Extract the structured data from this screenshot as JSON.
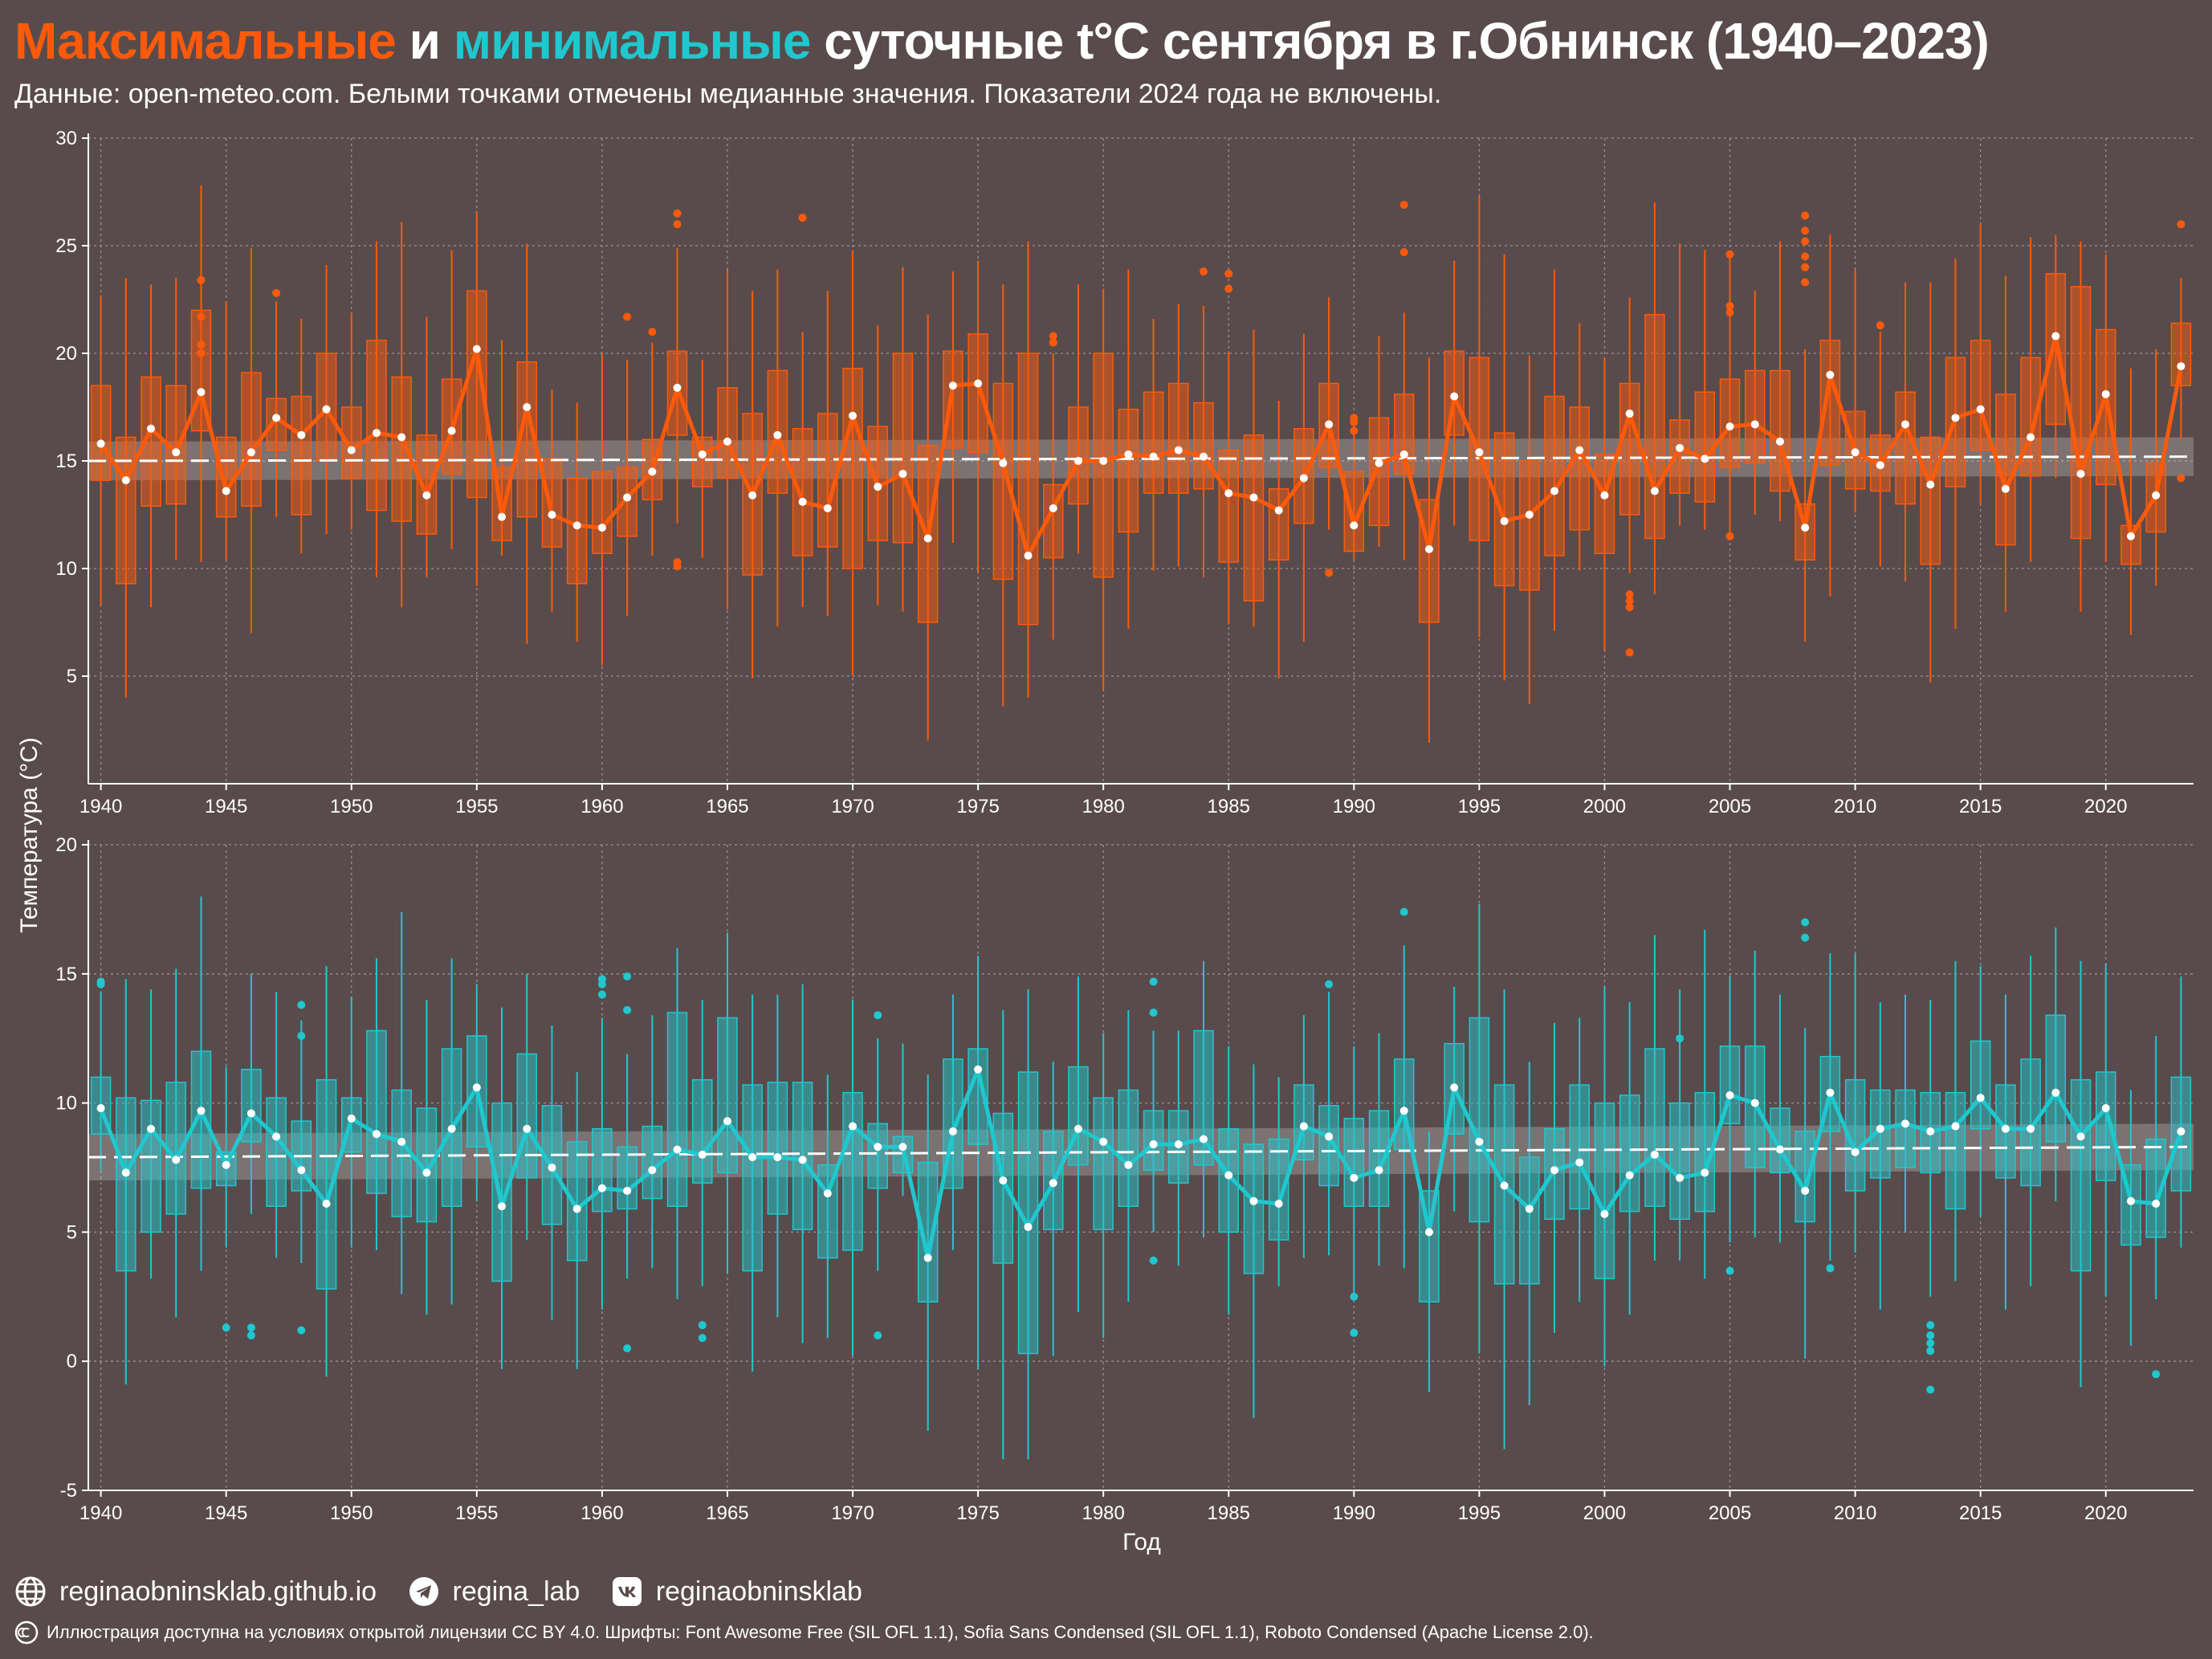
{
  "header": {
    "title_max": "Максимальные",
    "title_and": " и ",
    "title_min": "минимальные",
    "title_rest": " суточные t°C сентября в г.Обнинск (1940–2023)",
    "subtitle": "Данные: open-meteo.com. Белыми точками отмечены медианные значения. Показатели 2024 года не включены."
  },
  "colors": {
    "max": "#fc5a0b",
    "min": "#1fc8ce",
    "background": "#594b4b",
    "median_point": "#ffffff",
    "trend": "#ffffff"
  },
  "footer": {
    "links": [
      {
        "icon": "globe-icon",
        "text": "reginaobninsklab.github.io"
      },
      {
        "icon": "telegram-icon",
        "text": "regina_lab"
      },
      {
        "icon": "vk-icon",
        "text": "reginaobninsklab"
      }
    ],
    "license_icon": "cc-icon",
    "license": "Иллюстрация доступна на условиях открытой лицензии CC BY 4.0.  Шрифты: Font Awesome Free (SIL OFL 1.1), Sofia Sans Condensed (SIL OFL 1.1), Roboto Condensed (Apache License 2.0)."
  },
  "chart_data": [
    {
      "type": "box",
      "name": "Максимальные",
      "xlabel": "Год",
      "ylabel": "Температура (°C)",
      "xlim": [
        1939.5,
        2023.5
      ],
      "ylim": [
        0,
        30
      ],
      "xticks": [
        1940,
        1945,
        1950,
        1955,
        1960,
        1965,
        1970,
        1975,
        1980,
        1985,
        1990,
        1995,
        2000,
        2005,
        2010,
        2015,
        2020
      ],
      "yticks": [
        5,
        10,
        15,
        20,
        25,
        30
      ],
      "grid": true,
      "trend": [
        15.0,
        15.2
      ],
      "start_year": 1940,
      "medians": [
        15.8,
        14.1,
        16.5,
        15.4,
        18.2,
        13.6,
        15.4,
        17.0,
        16.2,
        17.4,
        15.5,
        16.3,
        16.1,
        13.4,
        16.4,
        20.2,
        12.4,
        17.5,
        12.5,
        12.0,
        11.9,
        13.3,
        14.5,
        18.4,
        15.3,
        15.9,
        13.4,
        16.2,
        13.1,
        12.8,
        17.1,
        13.8,
        14.4,
        11.4,
        18.5,
        18.6,
        14.9,
        10.6,
        12.8,
        15.0,
        15.0,
        15.3,
        15.2,
        15.5,
        15.2,
        13.5,
        13.3,
        12.7,
        14.2,
        16.7,
        12.0,
        14.9,
        15.3,
        10.9,
        18.0,
        15.4,
        12.2,
        12.5,
        13.6,
        15.5,
        13.4,
        17.2,
        13.6,
        15.6,
        15.1,
        16.6,
        16.7,
        15.9,
        11.9,
        19.0,
        15.4,
        14.8,
        16.7,
        13.9,
        17.0,
        17.4,
        13.7,
        16.1,
        20.8,
        14.4,
        18.1,
        11.5,
        13.4,
        19.4
      ],
      "q1": [
        14.1,
        9.3,
        12.9,
        13.0,
        16.4,
        12.4,
        12.9,
        15.5,
        12.5,
        15.0,
        14.2,
        12.7,
        12.2,
        11.6,
        14.4,
        13.3,
        11.3,
        12.4,
        11.0,
        9.3,
        10.7,
        11.5,
        13.2,
        16.2,
        13.8,
        14.2,
        9.7,
        13.5,
        10.6,
        11.0,
        10.0,
        11.3,
        11.2,
        7.5,
        15.6,
        15.4,
        9.5,
        7.4,
        10.5,
        13.0,
        9.6,
        11.7,
        13.5,
        13.5,
        13.7,
        10.3,
        8.5,
        10.4,
        12.1,
        14.7,
        10.8,
        12.0,
        14.4,
        7.5,
        16.2,
        11.3,
        9.2,
        9.0,
        10.6,
        11.8,
        10.7,
        12.5,
        11.4,
        13.5,
        13.1,
        14.7,
        14.9,
        13.6,
        10.4,
        14.8,
        13.7,
        13.6,
        13.0,
        10.2,
        13.8,
        15.5,
        11.1,
        14.3,
        16.7,
        11.4,
        13.9,
        10.2,
        11.7,
        18.5
      ],
      "q3": [
        18.5,
        16.1,
        18.9,
        18.5,
        22.0,
        16.1,
        19.1,
        17.9,
        18.0,
        20.0,
        17.5,
        20.6,
        18.9,
        16.2,
        18.8,
        22.9,
        14.7,
        19.6,
        15.1,
        14.2,
        14.5,
        14.7,
        16.0,
        20.1,
        16.1,
        18.4,
        17.2,
        19.2,
        16.5,
        17.2,
        19.3,
        16.6,
        20.0,
        15.7,
        20.1,
        20.9,
        18.6,
        20.0,
        13.9,
        17.5,
        20.0,
        17.4,
        18.2,
        18.6,
        17.7,
        15.5,
        16.2,
        13.7,
        16.5,
        18.6,
        14.5,
        17.0,
        18.1,
        13.2,
        20.1,
        19.8,
        16.3,
        15.0,
        18.0,
        17.5,
        15.3,
        18.6,
        21.8,
        16.9,
        18.2,
        18.8,
        19.2,
        19.2,
        13.0,
        20.6,
        17.3,
        16.2,
        18.2,
        16.1,
        19.8,
        20.6,
        18.1,
        19.8,
        23.7,
        23.1,
        21.1,
        12.0,
        14.9,
        21.4
      ],
      "whisker_low": [
        8.3,
        4.0,
        8.2,
        10.4,
        10.3,
        10.4,
        7.0,
        12.4,
        10.7,
        11.6,
        11.8,
        9.6,
        8.2,
        9.6,
        10.9,
        9.2,
        10.6,
        6.5,
        8.0,
        6.6,
        5.5,
        7.8,
        10.6,
        12.1,
        10.5,
        8.1,
        4.9,
        7.3,
        8.2,
        7.8,
        5.0,
        8.3,
        8.0,
        2.0,
        11.2,
        9.8,
        3.6,
        4.0,
        6.7,
        10.7,
        4.3,
        7.2,
        9.9,
        10.1,
        9.6,
        7.4,
        7.3,
        4.9,
        6.6,
        11.8,
        10.4,
        11.0,
        10.4,
        1.9,
        12.0,
        6.8,
        4.8,
        3.7,
        7.1,
        9.9,
        6.2,
        9.8,
        8.8,
        12.0,
        11.8,
        11.7,
        12.5,
        12.2,
        6.6,
        8.7,
        12.6,
        10.1,
        9.4,
        4.7,
        7.2,
        13.0,
        8.0,
        10.3,
        14.2,
        8.0,
        10.3,
        6.9,
        9.2,
        16.0
      ],
      "whisker_high": [
        22.7,
        23.5,
        23.2,
        23.5,
        27.8,
        22.4,
        24.9,
        22.4,
        21.6,
        24.1,
        21.9,
        25.2,
        26.1,
        21.7,
        24.8,
        26.6,
        20.6,
        25.1,
        18.3,
        17.7,
        20.0,
        19.7,
        20.5,
        24.9,
        19.7,
        23.9,
        22.9,
        23.9,
        21.0,
        22.9,
        24.8,
        21.3,
        24.0,
        21.8,
        23.8,
        24.3,
        23.2,
        25.2,
        20.0,
        23.2,
        23.0,
        23.9,
        21.6,
        22.3,
        22.2,
        20.1,
        21.1,
        17.8,
        20.9,
        22.6,
        16.3,
        20.8,
        21.9,
        19.8,
        24.3,
        27.3,
        24.6,
        19.9,
        23.9,
        21.4,
        19.8,
        22.6,
        27.0,
        25.1,
        24.8,
        24.6,
        22.9,
        25.2,
        20.2,
        25.5,
        23.9,
        21.0,
        23.3,
        23.3,
        24.4,
        26.0,
        23.6,
        25.4,
        25.5,
        25.2,
        24.6,
        19.3,
        20.2,
        23.5
      ],
      "outliers": [
        [
          1944,
          23.4
        ],
        [
          1944,
          21.7
        ],
        [
          1944,
          20.4
        ],
        [
          1944,
          20.0
        ],
        [
          1947,
          22.8
        ],
        [
          1961,
          21.7
        ],
        [
          1962,
          21.0
        ],
        [
          1963,
          26.5
        ],
        [
          1963,
          26.0
        ],
        [
          1963,
          10.3
        ],
        [
          1963,
          10.1
        ],
        [
          1968,
          26.3
        ],
        [
          1978,
          20.8
        ],
        [
          1978,
          20.5
        ],
        [
          1984,
          23.8
        ],
        [
          1985,
          23.7
        ],
        [
          1985,
          23.0
        ],
        [
          1989,
          9.8
        ],
        [
          1990,
          17.0
        ],
        [
          1990,
          16.8
        ],
        [
          1990,
          16.4
        ],
        [
          1992,
          26.9
        ],
        [
          1992,
          24.7
        ],
        [
          2001,
          8.8
        ],
        [
          2001,
          8.5
        ],
        [
          2001,
          8.2
        ],
        [
          2001,
          6.1
        ],
        [
          2005,
          24.6
        ],
        [
          2005,
          22.2
        ],
        [
          2005,
          21.9
        ],
        [
          2005,
          11.5
        ],
        [
          2008,
          26.4
        ],
        [
          2008,
          25.7
        ],
        [
          2008,
          25.2
        ],
        [
          2008,
          24.5
        ],
        [
          2008,
          24.0
        ],
        [
          2008,
          23.3
        ],
        [
          2011,
          21.3
        ],
        [
          2023,
          26.0
        ],
        [
          2023,
          14.2
        ]
      ]
    },
    {
      "type": "box",
      "name": "минимальные",
      "xlabel": "Год",
      "ylabel": "Температура (°C)",
      "xlim": [
        1939.5,
        2023.5
      ],
      "ylim": [
        -5,
        20
      ],
      "xticks": [
        1940,
        1945,
        1950,
        1955,
        1960,
        1965,
        1970,
        1975,
        1980,
        1985,
        1990,
        1995,
        2000,
        2005,
        2010,
        2015,
        2020
      ],
      "yticks": [
        -5,
        0,
        5,
        10,
        15,
        20
      ],
      "grid": true,
      "trend": [
        7.9,
        8.3
      ],
      "start_year": 1940,
      "medians": [
        9.8,
        7.3,
        9.0,
        7.8,
        9.7,
        7.6,
        9.6,
        8.7,
        7.4,
        6.1,
        9.4,
        8.8,
        8.5,
        7.3,
        9.0,
        10.6,
        6.0,
        9.0,
        7.5,
        5.9,
        6.7,
        6.6,
        7.4,
        8.2,
        8.0,
        9.3,
        7.9,
        7.9,
        7.8,
        6.5,
        9.1,
        8.3,
        8.3,
        4.0,
        8.9,
        11.3,
        7.0,
        5.2,
        6.9,
        9.0,
        8.5,
        7.6,
        8.4,
        8.4,
        8.6,
        7.2,
        6.2,
        6.1,
        9.1,
        8.7,
        7.1,
        7.4,
        9.7,
        5.0,
        10.6,
        8.5,
        6.8,
        5.9,
        7.4,
        7.7,
        5.7,
        7.2,
        8.0,
        7.1,
        7.3,
        10.3,
        10.0,
        8.2,
        6.6,
        10.4,
        8.1,
        9.0,
        9.2,
        8.9,
        9.1,
        10.2,
        9.0,
        9.0,
        10.4,
        8.7,
        9.8,
        6.2,
        6.1,
        8.9
      ],
      "q1": [
        8.8,
        3.5,
        5.0,
        5.7,
        6.7,
        6.8,
        8.5,
        6.0,
        6.6,
        2.8,
        8.1,
        6.5,
        5.6,
        5.4,
        6.0,
        8.3,
        3.1,
        7.1,
        5.3,
        3.9,
        5.8,
        5.9,
        6.3,
        6.0,
        6.9,
        7.3,
        3.5,
        5.7,
        5.1,
        4.0,
        4.3,
        6.7,
        7.3,
        2.3,
        6.7,
        8.4,
        3.8,
        0.3,
        5.1,
        7.6,
        5.1,
        6.0,
        7.4,
        6.9,
        7.6,
        5.0,
        3.4,
        4.7,
        7.8,
        6.8,
        6.0,
        6.0,
        8.2,
        2.3,
        8.8,
        5.4,
        3.0,
        3.0,
        5.5,
        5.9,
        3.2,
        5.8,
        6.0,
        5.5,
        5.8,
        9.2,
        7.5,
        7.3,
        5.4,
        8.9,
        6.6,
        7.1,
        7.5,
        7.3,
        5.9,
        9.0,
        7.1,
        6.8,
        8.5,
        3.5,
        7.0,
        4.5,
        4.8,
        6.6
      ],
      "q3": [
        11.0,
        10.2,
        10.1,
        10.8,
        12.0,
        8.1,
        11.3,
        10.2,
        9.3,
        10.9,
        10.2,
        12.8,
        10.5,
        9.8,
        12.1,
        12.6,
        10.0,
        11.9,
        9.9,
        8.5,
        9.0,
        8.3,
        9.1,
        13.5,
        10.9,
        13.3,
        10.7,
        10.8,
        10.8,
        7.6,
        10.4,
        9.2,
        8.7,
        7.7,
        11.7,
        12.1,
        9.6,
        11.2,
        8.9,
        11.4,
        10.2,
        10.5,
        9.7,
        9.7,
        12.8,
        9.0,
        8.4,
        8.6,
        10.7,
        9.9,
        9.4,
        9.7,
        11.7,
        6.6,
        12.3,
        13.3,
        10.7,
        7.9,
        9.0,
        10.7,
        10.0,
        10.3,
        12.1,
        10.0,
        10.4,
        12.2,
        12.2,
        9.8,
        8.9,
        11.8,
        10.9,
        10.5,
        10.5,
        10.4,
        10.4,
        12.4,
        10.7,
        11.7,
        13.4,
        10.9,
        11.2,
        7.6,
        8.6,
        11.0
      ],
      "whisker_low": [
        7.4,
        -0.9,
        3.2,
        1.7,
        3.5,
        4.4,
        5.7,
        4.0,
        3.8,
        -0.6,
        4.4,
        4.3,
        2.6,
        1.8,
        2.2,
        6.2,
        -0.3,
        4.7,
        1.6,
        -0.3,
        2.0,
        3.2,
        3.6,
        2.4,
        2.9,
        3.4,
        -0.4,
        1.7,
        0.7,
        0.9,
        0.2,
        3.5,
        6.4,
        -2.7,
        4.3,
        -0.3,
        -3.8,
        -3.8,
        0.2,
        1.9,
        0.9,
        2.3,
        5.0,
        3.7,
        4.8,
        1.8,
        -2.2,
        2.9,
        4.0,
        4.1,
        2.4,
        3.7,
        3.6,
        -1.2,
        5.8,
        0.3,
        -3.4,
        -1.7,
        1.1,
        2.3,
        -0.2,
        1.8,
        3.9,
        3.9,
        3.2,
        4.6,
        4.8,
        4.6,
        0.1,
        3.9,
        4.2,
        2.0,
        5.0,
        2.5,
        3.1,
        5.6,
        2.0,
        2.9,
        6.2,
        -1.0,
        2.5,
        0.6,
        2.4,
        4.4
      ],
      "whisker_high": [
        14.3,
        14.8,
        14.4,
        15.2,
        18.0,
        11.4,
        15.0,
        14.3,
        13.2,
        15.3,
        14.1,
        15.6,
        17.4,
        14.0,
        15.6,
        14.6,
        13.7,
        15.0,
        13.0,
        11.2,
        13.3,
        11.9,
        13.4,
        16.0,
        14.0,
        16.6,
        14.2,
        14.2,
        14.6,
        11.1,
        14.0,
        12.5,
        12.3,
        11.1,
        14.2,
        15.7,
        13.6,
        14.4,
        11.6,
        14.9,
        12.7,
        13.6,
        12.8,
        12.8,
        15.5,
        12.2,
        11.5,
        11.0,
        13.4,
        14.3,
        12.2,
        12.7,
        16.1,
        8.9,
        14.5,
        17.7,
        14.4,
        11.6,
        13.1,
        13.3,
        14.5,
        13.9,
        16.5,
        14.4,
        16.7,
        14.9,
        15.9,
        14.2,
        12.9,
        15.8,
        15.8,
        13.9,
        14.2,
        14.0,
        15.5,
        15.3,
        14.2,
        15.7,
        16.8,
        15.5,
        15.4,
        10.5,
        12.6,
        14.9
      ],
      "outliers": [
        [
          1940,
          14.7
        ],
        [
          1940,
          14.6
        ],
        [
          1945,
          1.3
        ],
        [
          1946,
          1.3
        ],
        [
          1946,
          1.0
        ],
        [
          1948,
          13.8
        ],
        [
          1948,
          12.6
        ],
        [
          1948,
          1.2
        ],
        [
          1960,
          14.8
        ],
        [
          1960,
          14.6
        ],
        [
          1960,
          14.2
        ],
        [
          1961,
          14.9
        ],
        [
          1961,
          13.6
        ],
        [
          1961,
          0.5
        ],
        [
          1964,
          1.4
        ],
        [
          1964,
          0.9
        ],
        [
          1971,
          13.4
        ],
        [
          1971,
          1.0
        ],
        [
          1982,
          14.7
        ],
        [
          1982,
          13.5
        ],
        [
          1982,
          3.9
        ],
        [
          1989,
          14.6
        ],
        [
          1990,
          2.5
        ],
        [
          1990,
          1.1
        ],
        [
          1992,
          17.4
        ],
        [
          2003,
          12.5
        ],
        [
          2005,
          3.5
        ],
        [
          2008,
          17.0
        ],
        [
          2008,
          16.4
        ],
        [
          2009,
          3.6
        ],
        [
          2013,
          1.4
        ],
        [
          2013,
          1.0
        ],
        [
          2013,
          0.7
        ],
        [
          2013,
          0.4
        ],
        [
          2013,
          -1.1
        ],
        [
          2022,
          -0.5
        ]
      ]
    }
  ]
}
